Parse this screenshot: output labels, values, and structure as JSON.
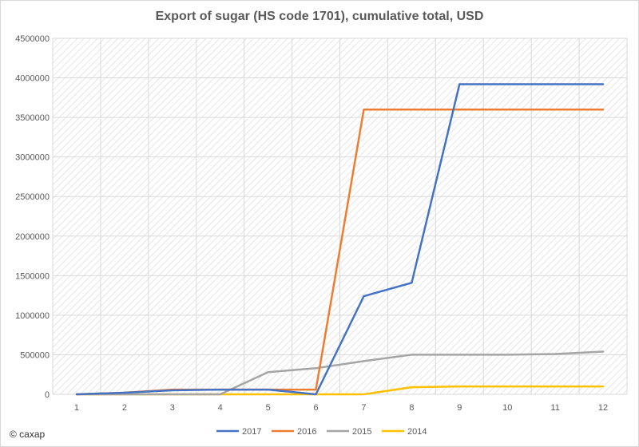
{
  "chart_data": {
    "type": "line",
    "title": "Export of sugar (HS code 1701), cumulative total, USD",
    "x": [
      "1",
      "2",
      "3",
      "4",
      "5",
      "6",
      "7",
      "8",
      "9",
      "10",
      "11",
      "12"
    ],
    "ylim": [
      0,
      4500000
    ],
    "yticks": [
      0,
      500000,
      1000000,
      1500000,
      2000000,
      2500000,
      3000000,
      3500000,
      4000000,
      4500000
    ],
    "grid": true,
    "legend_position": "bottom",
    "series": [
      {
        "name": "2017",
        "color": "#4472C4",
        "values": [
          0,
          20000,
          50000,
          60000,
          60000,
          0,
          1240000,
          1410000,
          3920000,
          3920000,
          3920000,
          3920000
        ]
      },
      {
        "name": "2016",
        "color": "#ED7D31",
        "values": [
          0,
          20000,
          60000,
          60000,
          60000,
          60000,
          3600000,
          3600000,
          3600000,
          3600000,
          3600000,
          3600000
        ]
      },
      {
        "name": "2015",
        "color": "#A5A5A5",
        "values": [
          0,
          0,
          0,
          0,
          280000,
          330000,
          420000,
          500000,
          500000,
          500000,
          510000,
          540000
        ]
      },
      {
        "name": "2014",
        "color": "#FFC000",
        "values": [
          0,
          0,
          0,
          0,
          0,
          0,
          0,
          90000,
          100000,
          100000,
          100000,
          100000
        ]
      }
    ]
  },
  "copyright": "© caxap"
}
